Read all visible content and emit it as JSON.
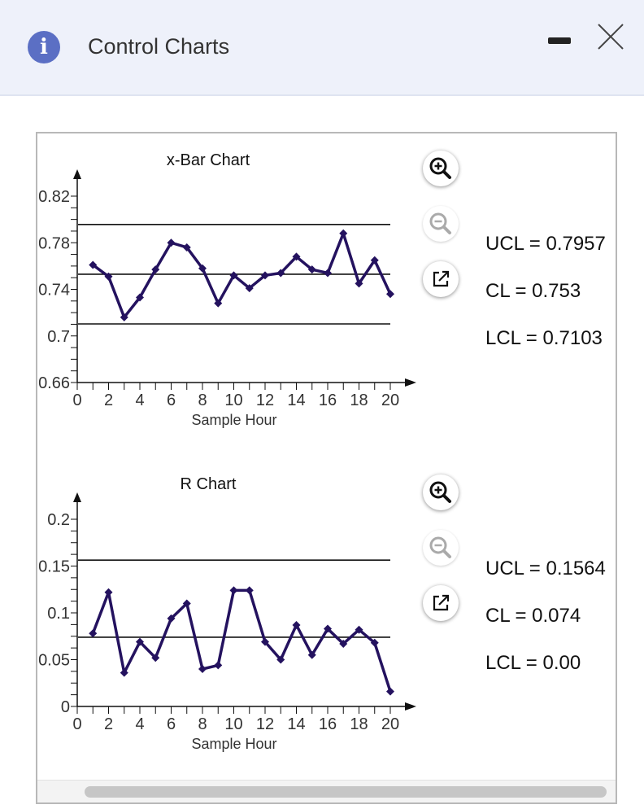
{
  "dialog": {
    "title": "Control Charts",
    "icons": {
      "info": "info-icon",
      "minimize": "minimize-icon",
      "close": "close-icon"
    }
  },
  "colors": {
    "series": "#24125f",
    "limits": "#111111",
    "header_bg": "#eef1fa",
    "info_icon": "#5b6fc4"
  },
  "xbar": {
    "ucl_label": "UCL = 0.7957",
    "cl_label": "CL = 0.753",
    "lcl_label": "LCL = 0.7103",
    "tools": [
      "zoom-in-icon",
      "zoom-out-icon",
      "pop-out-icon"
    ]
  },
  "rchart": {
    "ucl_label": "UCL = 0.1564",
    "cl_label": "CL = 0.074",
    "lcl_label": "LCL = 0.00",
    "tools": [
      "zoom-in-icon",
      "zoom-out-icon",
      "pop-out-icon"
    ]
  },
  "chart_data": [
    {
      "type": "line",
      "title": "x-Bar Chart",
      "xlabel": "Sample Hour",
      "ylabel": "",
      "xlim": [
        0,
        20
      ],
      "ylim": [
        0.66,
        0.82
      ],
      "x_ticks": [
        0,
        2,
        4,
        6,
        8,
        10,
        12,
        14,
        16,
        18,
        20
      ],
      "y_ticks": [
        0.66,
        0.7,
        0.74,
        0.78,
        0.82
      ],
      "y_tick_labels": [
        "0.66",
        "0.7",
        "0.74",
        "0.78",
        "0.82"
      ],
      "x": [
        1,
        2,
        3,
        4,
        5,
        6,
        7,
        8,
        9,
        10,
        11,
        12,
        13,
        14,
        15,
        16,
        17,
        18,
        19,
        20
      ],
      "series": [
        {
          "values": [
            0.761,
            0.751,
            0.716,
            0.733,
            0.757,
            0.78,
            0.776,
            0.758,
            0.728,
            0.752,
            0.741,
            0.752,
            0.754,
            0.768,
            0.757,
            0.754,
            0.788,
            0.745,
            0.765,
            0.736
          ]
        }
      ],
      "limits": {
        "ucl": 0.7957,
        "cl": 0.753,
        "lcl": 0.7103
      },
      "grid": false
    },
    {
      "type": "line",
      "title": "R Chart",
      "xlabel": "Sample Hour",
      "ylabel": "",
      "xlim": [
        0,
        20
      ],
      "ylim": [
        0,
        0.2
      ],
      "x_ticks": [
        0,
        2,
        4,
        6,
        8,
        10,
        12,
        14,
        16,
        18,
        20
      ],
      "y_ticks": [
        0,
        0.05,
        0.1,
        0.15,
        0.2
      ],
      "y_tick_labels": [
        "0",
        "0.05",
        "0.1",
        "0.15",
        "0.2"
      ],
      "x": [
        1,
        2,
        3,
        4,
        5,
        6,
        7,
        8,
        9,
        10,
        11,
        12,
        13,
        14,
        15,
        16,
        17,
        18,
        19,
        20
      ],
      "series": [
        {
          "values": [
            0.078,
            0.122,
            0.036,
            0.069,
            0.052,
            0.094,
            0.11,
            0.04,
            0.044,
            0.124,
            0.124,
            0.069,
            0.05,
            0.087,
            0.055,
            0.083,
            0.067,
            0.082,
            0.068,
            0.016
          ]
        }
      ],
      "limits": {
        "ucl": 0.1564,
        "cl": 0.074,
        "lcl": 0.0
      },
      "grid": false
    }
  ]
}
